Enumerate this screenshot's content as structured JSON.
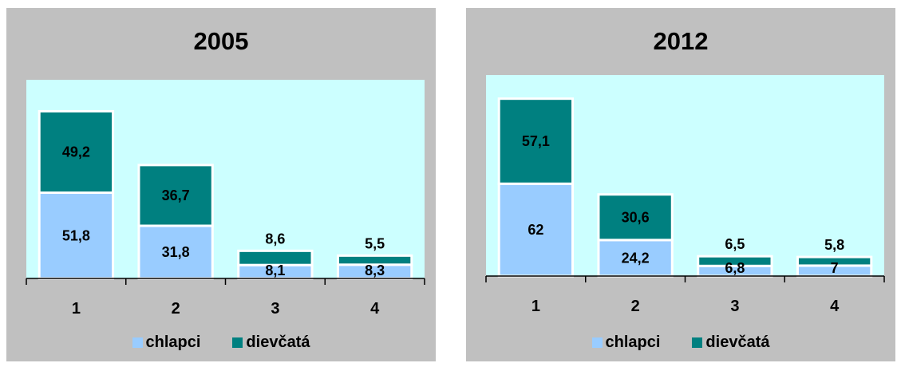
{
  "chart_data": [
    {
      "type": "bar",
      "stacked": true,
      "title": "2005",
      "categories": [
        "1",
        "2",
        "3",
        "4"
      ],
      "series": [
        {
          "name": "chlapci",
          "values": [
            51.8,
            31.8,
            8.1,
            8.3
          ],
          "labels": [
            "51,8",
            "31,8",
            "8,1",
            "8,3"
          ],
          "color": "#99ccff"
        },
        {
          "name": "dievčatá",
          "values": [
            49.2,
            36.7,
            8.6,
            5.5
          ],
          "labels": [
            "49,2",
            "36,7",
            "8,6",
            "5,5"
          ],
          "color": "#008080"
        }
      ],
      "ylim": [
        0,
        120
      ],
      "plot_background": "#ccffff",
      "legend_position": "bottom"
    },
    {
      "type": "bar",
      "stacked": true,
      "title": "2012",
      "categories": [
        "1",
        "2",
        "3",
        "4"
      ],
      "series": [
        {
          "name": "chlapci",
          "values": [
            62,
            24.2,
            6.8,
            7
          ],
          "labels": [
            "62",
            "24,2",
            "6,8",
            "7"
          ],
          "color": "#99ccff"
        },
        {
          "name": "dievčatá",
          "values": [
            57.1,
            30.6,
            6.5,
            5.8
          ],
          "labels": [
            "57,1",
            "30,6",
            "6,5",
            "5,8"
          ],
          "color": "#008080"
        }
      ],
      "ylim": [
        0,
        135
      ],
      "plot_background": "#ccffff",
      "legend_position": "bottom"
    }
  ]
}
